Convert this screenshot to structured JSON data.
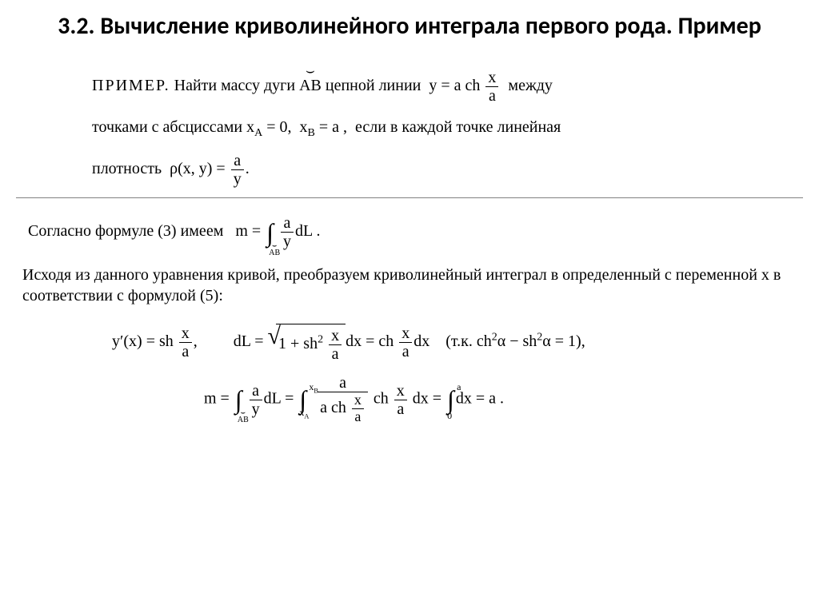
{
  "title": "3.2. Вычисление криволинейного интеграла первого рода. Пример",
  "problem": {
    "lead": "ПРИМЕР.",
    "t1": "Найти массу дуги",
    "arc": "AB",
    "t2": "цепной линии",
    "eq_y": "y = a ch",
    "eq_y_frac_num": "x",
    "eq_y_frac_den": "a",
    "t3": "между",
    "t4": "точками с абсциссами",
    "xa": "x",
    "xa_sub": "A",
    "xa_eq": " = 0,",
    "xb": "x",
    "xb_sub": "B",
    "xb_eq": " = a ,",
    "t5": "если в каждой точке линейная",
    "t6": "плотность",
    "rho": "ρ(x, y) = ",
    "rho_num": "a",
    "rho_den": "y",
    "dot": "."
  },
  "solution": {
    "line1a": "Согласно формуле (3) имеем",
    "m_eq": "m =",
    "int_bottom": "AB",
    "frac_num": "a",
    "frac_den": "y",
    "dL": "dL .",
    "para": "Исходя из данного уравнения кривой, преобразуем криволинейный интеграл в определенный с переменной х в соответствии с формулой (5):",
    "yprime": "y′(x) = sh",
    "xa_num": "x",
    "xa_den": "a",
    "comma": ",",
    "dLeq": "dL =",
    "one_plus": "1 + sh",
    "sq": "2",
    "xa2_num": "x",
    "xa2_den": "a",
    "dx": "dx",
    "eq_ch": " = ch",
    "note": "(т.к.  ch",
    "alpha": "α − sh",
    "eq1": " = 1),",
    "m2": "m =",
    "int2_low": "AB",
    "frac2_num": "a",
    "frac2_den": "y",
    "dL2": "dL =",
    "int3_low": "x",
    "int3_low_sub": "A",
    "int3_hi": "x",
    "int3_hi_sub": "B",
    "frac3_num": "a",
    "frac3_den_pre": "a ch",
    "frac3_den_num": "x",
    "frac3_den_den": "a",
    "ch2": " ch",
    "dx2": " dx =",
    "int4_low": "0",
    "int4_hi": "a",
    "dx3": "dx = a ."
  },
  "style": {
    "title_fontsize": 30,
    "body_fontsize": 20,
    "text_color": "#000000",
    "background_color": "#ffffff",
    "divider_color": "#808080",
    "font_title": "Calibri, Arial, sans-serif",
    "font_body": "Times New Roman, serif"
  }
}
